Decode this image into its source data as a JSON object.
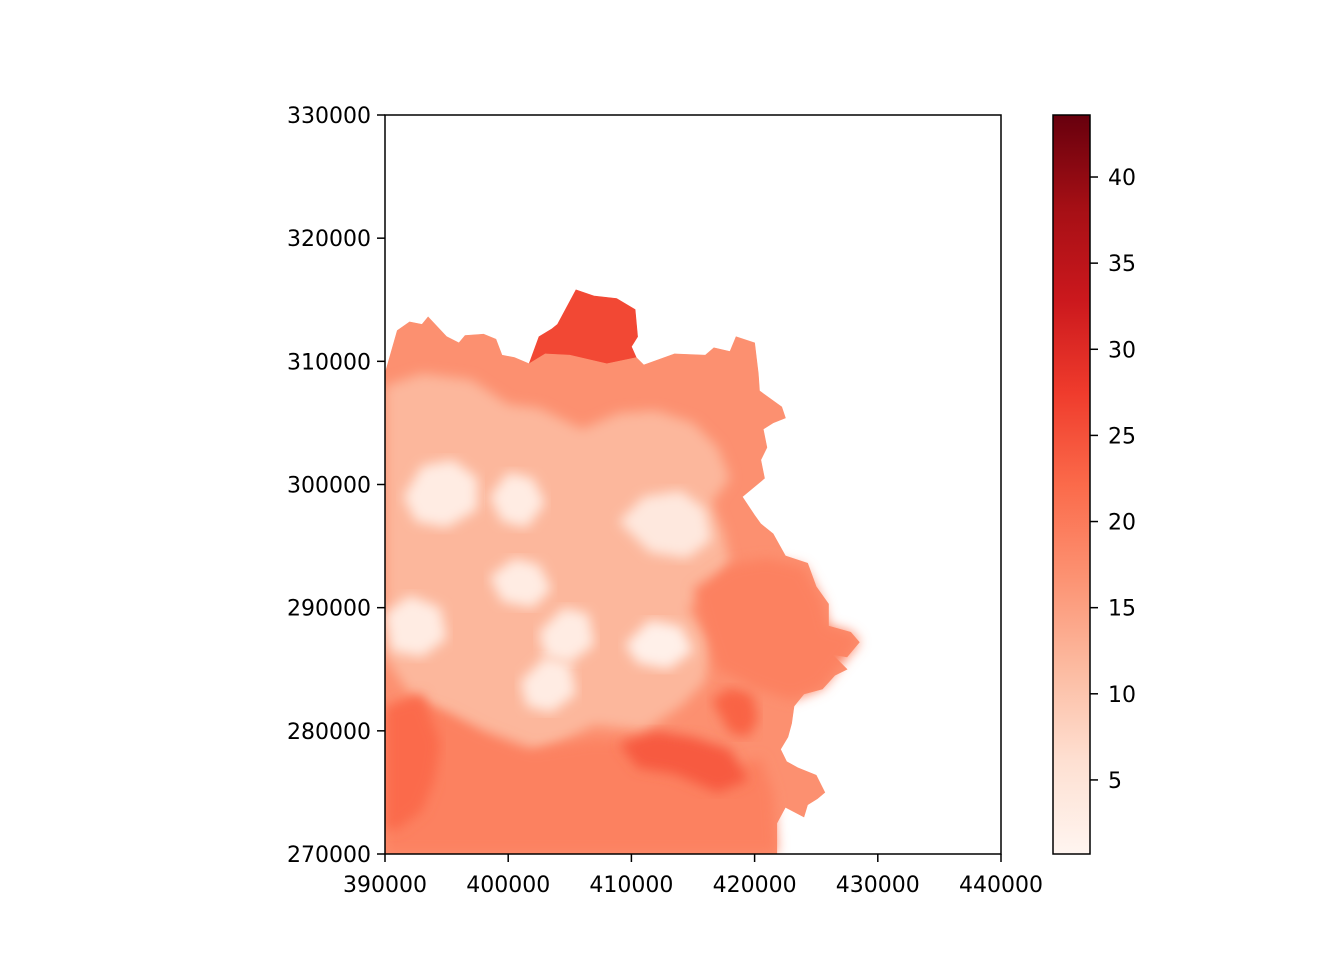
{
  "chart_data": {
    "type": "heatmap",
    "subtype": "choropleth-map",
    "title": "",
    "xlabel": "",
    "ylabel": "",
    "xlim": [
      390000,
      440000
    ],
    "ylim": [
      270000,
      330000
    ],
    "xticks": [
      390000,
      400000,
      410000,
      420000,
      430000,
      440000
    ],
    "yticks": [
      270000,
      280000,
      290000,
      300000,
      310000,
      320000,
      330000
    ],
    "xtick_labels": [
      "390000",
      "400000",
      "410000",
      "420000",
      "430000",
      "440000"
    ],
    "ytick_labels": [
      "270000",
      "280000",
      "290000",
      "300000",
      "310000",
      "320000",
      "330000"
    ],
    "grid": false,
    "colormap": "Reds",
    "colorbar": {
      "min": 0.7,
      "max": 43.6,
      "ticks": [
        5,
        10,
        15,
        20,
        25,
        30,
        35,
        40
      ],
      "tick_labels": [
        "5",
        "10",
        "15",
        "20",
        "25",
        "30",
        "35",
        "40"
      ],
      "colors": [
        "#fff5f0",
        "#fee0d2",
        "#fcbba1",
        "#fc9272",
        "#fb6a4a",
        "#ef3b2c",
        "#cb181d",
        "#a50f15",
        "#67000d"
      ]
    },
    "regions": [
      {
        "name": "",
        "value": 26,
        "outline": [
          [
            404000,
            313000
          ],
          [
            405500,
            315800
          ],
          [
            407000,
            315300
          ],
          [
            408800,
            315100
          ],
          [
            410300,
            314200
          ],
          [
            410500,
            312000
          ],
          [
            410000,
            311200
          ],
          [
            410400,
            310300
          ],
          [
            408000,
            309800
          ],
          [
            405000,
            310500
          ],
          [
            403000,
            310600
          ],
          [
            401700,
            309800
          ],
          [
            402500,
            312000
          ],
          [
            403500,
            312600
          ]
        ]
      },
      {
        "name": "",
        "value": 17,
        "outline": [
          [
            390000,
            309000
          ],
          [
            391000,
            312500
          ],
          [
            392000,
            313200
          ],
          [
            393000,
            313000
          ],
          [
            393500,
            313600
          ],
          [
            395000,
            312000
          ],
          [
            396000,
            311500
          ],
          [
            396500,
            312100
          ],
          [
            398000,
            312200
          ],
          [
            399000,
            311800
          ],
          [
            399500,
            310500
          ],
          [
            400500,
            310300
          ],
          [
            401700,
            309800
          ],
          [
            403000,
            310600
          ],
          [
            405000,
            310500
          ],
          [
            408000,
            309800
          ],
          [
            410400,
            310300
          ],
          [
            411000,
            309700
          ],
          [
            413500,
            310600
          ],
          [
            416000,
            310500
          ],
          [
            416700,
            311100
          ],
          [
            418000,
            310800
          ],
          [
            418500,
            312000
          ],
          [
            420000,
            311500
          ],
          [
            420300,
            309000
          ],
          [
            420400,
            307600
          ],
          [
            422200,
            306300
          ],
          [
            422500,
            305400
          ],
          [
            421500,
            305000
          ],
          [
            420700,
            304500
          ],
          [
            421000,
            303000
          ],
          [
            420500,
            302000
          ],
          [
            420800,
            300500
          ],
          [
            419000,
            299000
          ],
          [
            420000,
            297500
          ],
          [
            420500,
            296800
          ],
          [
            421500,
            296000
          ],
          [
            422500,
            294200
          ],
          [
            424300,
            293600
          ],
          [
            425000,
            291700
          ],
          [
            426000,
            290300
          ],
          [
            426000,
            288500
          ],
          [
            427800,
            288000
          ],
          [
            428500,
            287200
          ],
          [
            427500,
            286000
          ],
          [
            426300,
            286200
          ],
          [
            427500,
            285000
          ],
          [
            426500,
            284500
          ],
          [
            425500,
            283400
          ],
          [
            424000,
            283000
          ],
          [
            423200,
            282000
          ],
          [
            423000,
            280600
          ],
          [
            422700,
            279500
          ],
          [
            422100,
            278500
          ],
          [
            422600,
            277500
          ],
          [
            423500,
            277000
          ],
          [
            425000,
            276400
          ],
          [
            425700,
            275000
          ],
          [
            425100,
            274500
          ],
          [
            424300,
            274000
          ],
          [
            424000,
            273000
          ],
          [
            422500,
            273800
          ],
          [
            421800,
            272500
          ],
          [
            421800,
            270000
          ],
          [
            390000,
            270000
          ]
        ]
      },
      {
        "name": "",
        "value": 12,
        "outline": [
          [
            390000,
            308000
          ],
          [
            393000,
            309000
          ],
          [
            397000,
            308500
          ],
          [
            400000,
            306500
          ],
          [
            402500,
            306200
          ],
          [
            406000,
            304500
          ],
          [
            409000,
            305800
          ],
          [
            412000,
            306000
          ],
          [
            415000,
            305000
          ],
          [
            417000,
            303000
          ],
          [
            418000,
            300500
          ],
          [
            416500,
            298500
          ],
          [
            417500,
            296000
          ],
          [
            418000,
            293500
          ],
          [
            416500,
            291000
          ],
          [
            414500,
            290000
          ],
          [
            416500,
            287500
          ],
          [
            416000,
            284000
          ],
          [
            414000,
            282000
          ],
          [
            411000,
            280000
          ],
          [
            407000,
            280500
          ],
          [
            404000,
            279000
          ],
          [
            400500,
            277500
          ],
          [
            398000,
            279000
          ],
          [
            395000,
            281000
          ],
          [
            392000,
            283000
          ],
          [
            390000,
            286000
          ]
        ]
      },
      {
        "name": "",
        "value": 19,
        "outline": [
          [
            390000,
            281000
          ],
          [
            392000,
            282500
          ],
          [
            395000,
            281500
          ],
          [
            398000,
            280000
          ],
          [
            402000,
            278500
          ],
          [
            407000,
            279300
          ],
          [
            411000,
            279000
          ],
          [
            414000,
            278000
          ],
          [
            418000,
            277000
          ],
          [
            420500,
            277800
          ],
          [
            421500,
            275000
          ],
          [
            421800,
            270000
          ],
          [
            390000,
            270000
          ]
        ]
      },
      {
        "name": "",
        "value": 22,
        "outline": [
          [
            390000,
            282000
          ],
          [
            393000,
            283000
          ],
          [
            394500,
            279000
          ],
          [
            394000,
            276000
          ],
          [
            393000,
            273500
          ],
          [
            391000,
            272000
          ],
          [
            390000,
            272000
          ]
        ]
      },
      {
        "name": "",
        "value": 24,
        "outline": [
          [
            409000,
            279000
          ],
          [
            412000,
            280000
          ],
          [
            415000,
            279500
          ],
          [
            418000,
            278500
          ],
          [
            419500,
            276000
          ],
          [
            417000,
            275000
          ],
          [
            413500,
            276500
          ],
          [
            410500,
            277000
          ]
        ]
      },
      {
        "name": "",
        "value": 23,
        "outline": [
          [
            416500,
            282500
          ],
          [
            418000,
            283500
          ],
          [
            419800,
            283000
          ],
          [
            420300,
            281000
          ],
          [
            419500,
            279500
          ],
          [
            418000,
            279800
          ]
        ]
      },
      {
        "name": "",
        "value": 19,
        "outline": [
          [
            415000,
            291500
          ],
          [
            418000,
            293500
          ],
          [
            421000,
            294000
          ],
          [
            424000,
            293300
          ],
          [
            425500,
            290500
          ],
          [
            426000,
            288500
          ],
          [
            427800,
            288000
          ],
          [
            428500,
            287200
          ],
          [
            427500,
            286000
          ],
          [
            425500,
            283500
          ],
          [
            423000,
            282500
          ],
          [
            420000,
            283500
          ],
          [
            417000,
            285000
          ],
          [
            416000,
            288000
          ]
        ]
      },
      {
        "name": "",
        "value": 3,
        "outline": [
          [
            391500,
            299000
          ],
          [
            393000,
            301500
          ],
          [
            395500,
            302000
          ],
          [
            397500,
            300500
          ],
          [
            397500,
            298000
          ],
          [
            395000,
            296500
          ],
          [
            392500,
            297000
          ]
        ]
      },
      {
        "name": "",
        "value": 3,
        "outline": [
          [
            398500,
            299000
          ],
          [
            400000,
            301000
          ],
          [
            402000,
            300500
          ],
          [
            403000,
            298500
          ],
          [
            401500,
            296500
          ],
          [
            399500,
            297000
          ]
        ]
      },
      {
        "name": "",
        "value": 3,
        "outline": [
          [
            398500,
            292500
          ],
          [
            400500,
            294000
          ],
          [
            402500,
            293500
          ],
          [
            403500,
            291500
          ],
          [
            402000,
            290000
          ],
          [
            399500,
            290500
          ]
        ]
      },
      {
        "name": "",
        "value": 4,
        "outline": [
          [
            409000,
            297000
          ],
          [
            411000,
            299000
          ],
          [
            414000,
            299500
          ],
          [
            416000,
            298000
          ],
          [
            416500,
            295500
          ],
          [
            414500,
            294000
          ],
          [
            411500,
            294500
          ]
        ]
      },
      {
        "name": "",
        "value": 3,
        "outline": [
          [
            390000,
            289500
          ],
          [
            392000,
            291000
          ],
          [
            394500,
            290000
          ],
          [
            395000,
            287500
          ],
          [
            393000,
            286000
          ],
          [
            390500,
            286500
          ]
        ]
      },
      {
        "name": "",
        "value": 3,
        "outline": [
          [
            402500,
            288000
          ],
          [
            404500,
            290000
          ],
          [
            406500,
            289500
          ],
          [
            407000,
            287000
          ],
          [
            405000,
            285500
          ],
          [
            403000,
            286000
          ]
        ]
      },
      {
        "name": "",
        "value": 2,
        "outline": [
          [
            409500,
            287000
          ],
          [
            411500,
            289000
          ],
          [
            414000,
            288500
          ],
          [
            415000,
            286500
          ],
          [
            413000,
            285000
          ],
          [
            410500,
            285500
          ]
        ]
      },
      {
        "name": "",
        "value": 3,
        "outline": [
          [
            401000,
            284000
          ],
          [
            403000,
            286000
          ],
          [
            405000,
            285500
          ],
          [
            405500,
            283000
          ],
          [
            403500,
            281500
          ],
          [
            401500,
            282000
          ]
        ]
      }
    ]
  }
}
